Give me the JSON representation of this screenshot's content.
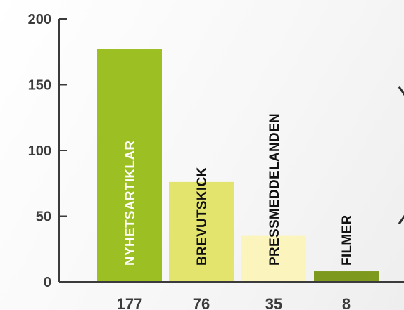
{
  "chart_data": {
    "type": "bar",
    "categories": [
      "NYHETSARTIKLAR",
      "BREVUTSKICK",
      "PRESSMEDDELANDEN",
      "FILMER"
    ],
    "values": [
      177,
      76,
      35,
      8
    ],
    "value_labels": [
      "177",
      "76",
      "35",
      "8"
    ],
    "ylim": [
      0,
      200
    ],
    "yticks": [
      0,
      50,
      100,
      150,
      200
    ],
    "ytick_labels": [
      "0",
      "50",
      "100",
      "150",
      "200"
    ],
    "title": "",
    "xlabel": "",
    "ylabel": "",
    "grid": false,
    "legend": "none",
    "bar_colors": [
      "#9cbf24",
      "#e3e46e",
      "#fbf5bd",
      "#7d9a1f"
    ],
    "label_colors": [
      "#ffffff",
      "#111111",
      "#111111",
      "#111111"
    ],
    "axis_color": "#3b3b3b"
  }
}
